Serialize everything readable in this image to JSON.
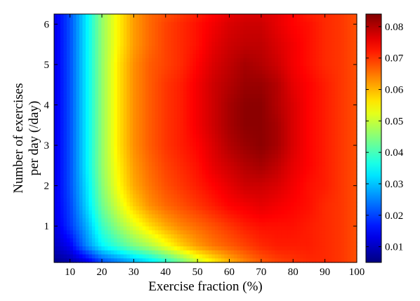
{
  "chart_data": {
    "type": "heatmap",
    "title": "",
    "xlabel": "Exercise fraction (%)",
    "ylabel_lines": [
      "Number of exercises",
      "per day (/day)"
    ],
    "xlim": [
      5,
      100
    ],
    "ylim": [
      0.1,
      6.25
    ],
    "x_ticks": [
      "10",
      "20",
      "30",
      "40",
      "50",
      "60",
      "70",
      "80",
      "90",
      "100"
    ],
    "y_ticks": [
      "1",
      "2",
      "3",
      "4",
      "5",
      "6"
    ],
    "colorbar": {
      "colormap": "jet",
      "range": [
        0.005,
        0.084
      ],
      "ticks": [
        "0.01",
        "0.02",
        "0.03",
        "0.04",
        "0.05",
        "0.06",
        "0.07",
        "0.08"
      ]
    },
    "x": [
      5,
      10,
      15,
      20,
      25,
      30,
      35,
      40,
      45,
      50,
      55,
      60,
      65,
      70,
      75,
      80,
      85,
      90,
      95,
      100
    ],
    "y": [
      0.1,
      0.5,
      1.0,
      1.5,
      2.0,
      2.5,
      3.0,
      3.5,
      4.0,
      4.5,
      5.0,
      5.5,
      6.0,
      6.25
    ],
    "z": [
      [
        0.006,
        0.008,
        0.012,
        0.02,
        0.024,
        0.028,
        0.032,
        0.037,
        0.043,
        0.05,
        0.055,
        0.06,
        0.064,
        0.067,
        0.069,
        0.07,
        0.071,
        0.071,
        0.07,
        0.068
      ],
      [
        0.01,
        0.014,
        0.025,
        0.034,
        0.039,
        0.044,
        0.048,
        0.053,
        0.058,
        0.062,
        0.065,
        0.067,
        0.069,
        0.071,
        0.072,
        0.072,
        0.072,
        0.071,
        0.07,
        0.068
      ],
      [
        0.012,
        0.019,
        0.028,
        0.039,
        0.046,
        0.052,
        0.057,
        0.061,
        0.064,
        0.066,
        0.068,
        0.07,
        0.072,
        0.073,
        0.073,
        0.073,
        0.072,
        0.071,
        0.07,
        0.068
      ],
      [
        0.013,
        0.02,
        0.031,
        0.043,
        0.051,
        0.058,
        0.063,
        0.066,
        0.068,
        0.07,
        0.072,
        0.074,
        0.075,
        0.076,
        0.075,
        0.074,
        0.073,
        0.071,
        0.07,
        0.068
      ],
      [
        0.013,
        0.021,
        0.032,
        0.045,
        0.054,
        0.061,
        0.065,
        0.068,
        0.07,
        0.072,
        0.074,
        0.076,
        0.078,
        0.078,
        0.077,
        0.075,
        0.073,
        0.072,
        0.07,
        0.068
      ],
      [
        0.013,
        0.021,
        0.033,
        0.046,
        0.055,
        0.062,
        0.066,
        0.069,
        0.071,
        0.073,
        0.076,
        0.078,
        0.08,
        0.081,
        0.079,
        0.076,
        0.074,
        0.072,
        0.07,
        0.068
      ],
      [
        0.013,
        0.021,
        0.033,
        0.046,
        0.056,
        0.063,
        0.067,
        0.07,
        0.072,
        0.074,
        0.077,
        0.08,
        0.082,
        0.083,
        0.081,
        0.077,
        0.074,
        0.072,
        0.07,
        0.068
      ],
      [
        0.013,
        0.021,
        0.033,
        0.046,
        0.056,
        0.063,
        0.067,
        0.07,
        0.072,
        0.075,
        0.078,
        0.081,
        0.083,
        0.083,
        0.081,
        0.077,
        0.074,
        0.072,
        0.07,
        0.068
      ],
      [
        0.013,
        0.021,
        0.033,
        0.046,
        0.056,
        0.063,
        0.067,
        0.07,
        0.072,
        0.075,
        0.078,
        0.081,
        0.083,
        0.083,
        0.08,
        0.077,
        0.074,
        0.072,
        0.07,
        0.068
      ],
      [
        0.013,
        0.021,
        0.033,
        0.046,
        0.056,
        0.063,
        0.067,
        0.07,
        0.072,
        0.075,
        0.078,
        0.08,
        0.082,
        0.082,
        0.08,
        0.076,
        0.074,
        0.072,
        0.07,
        0.068
      ],
      [
        0.013,
        0.021,
        0.033,
        0.046,
        0.056,
        0.063,
        0.067,
        0.069,
        0.071,
        0.074,
        0.077,
        0.079,
        0.081,
        0.08,
        0.078,
        0.075,
        0.073,
        0.071,
        0.07,
        0.068
      ],
      [
        0.013,
        0.021,
        0.033,
        0.046,
        0.055,
        0.062,
        0.066,
        0.069,
        0.071,
        0.073,
        0.076,
        0.078,
        0.079,
        0.079,
        0.077,
        0.075,
        0.073,
        0.071,
        0.07,
        0.068
      ],
      [
        0.013,
        0.021,
        0.033,
        0.046,
        0.055,
        0.062,
        0.066,
        0.069,
        0.071,
        0.073,
        0.075,
        0.077,
        0.078,
        0.078,
        0.076,
        0.074,
        0.073,
        0.071,
        0.07,
        0.068
      ],
      [
        0.013,
        0.021,
        0.033,
        0.046,
        0.055,
        0.062,
        0.066,
        0.068,
        0.07,
        0.072,
        0.074,
        0.076,
        0.077,
        0.077,
        0.076,
        0.074,
        0.072,
        0.071,
        0.07,
        0.068
      ]
    ]
  }
}
